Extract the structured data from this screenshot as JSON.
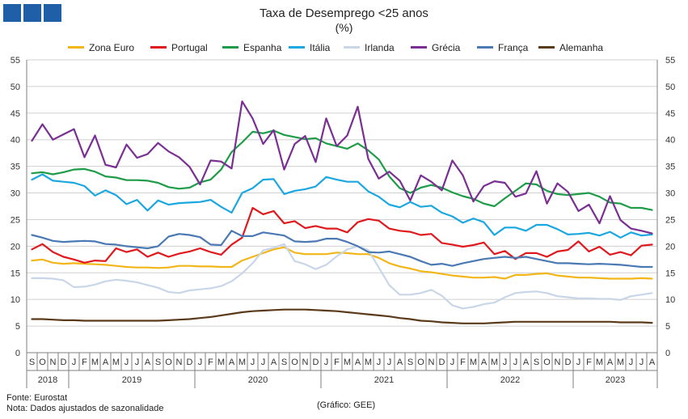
{
  "header": {
    "title": "Taxa de Desemprego <25 anos",
    "subtitle": "(%)"
  },
  "footer": {
    "source": "Fonte: Eurostat",
    "note": "Nota: Dados ajustados de sazonalidade",
    "credit": "(Gráfico: GEE)"
  },
  "colors": {
    "brand": "#1f5fa8",
    "grid": "#d0d0d0",
    "axis": "#7f7f7f"
  },
  "chart_data": {
    "type": "line",
    "title": "Taxa de Desemprego <25 anos",
    "subtitle": "(%)",
    "xlabel": "",
    "ylabel": "%",
    "ylim": [
      0,
      55
    ],
    "y_ticks": [
      0,
      5,
      10,
      15,
      20,
      25,
      30,
      35,
      40,
      45,
      50,
      55
    ],
    "grid": true,
    "legend_position": "top",
    "month_labels": [
      "S",
      "O",
      "N",
      "D",
      "J",
      "F",
      "M",
      "A",
      "M",
      "J",
      "J",
      "A",
      "S",
      "O",
      "N",
      "D",
      "J",
      "F",
      "M",
      "A",
      "M",
      "J",
      "J",
      "A",
      "S",
      "O",
      "N",
      "D",
      "J",
      "F",
      "M",
      "A",
      "M",
      "J",
      "J",
      "A",
      "S",
      "O",
      "N",
      "D",
      "J",
      "F",
      "M",
      "A",
      "M",
      "J",
      "J",
      "A",
      "S",
      "O",
      "N",
      "D",
      "J",
      "F",
      "M",
      "A",
      "M",
      "J",
      "J",
      "A"
    ],
    "year_labels": [
      {
        "label": "2018",
        "start": 0,
        "end": 3
      },
      {
        "label": "2019",
        "start": 4,
        "end": 15
      },
      {
        "label": "2020",
        "start": 16,
        "end": 27
      },
      {
        "label": "2021",
        "start": 28,
        "end": 39
      },
      {
        "label": "2022",
        "start": 40,
        "end": 51
      },
      {
        "label": "2023",
        "start": 52,
        "end": 59
      }
    ],
    "series": [
      {
        "name": "Zona Euro",
        "color": "#f2b619",
        "values": [
          17.3,
          17.5,
          16.9,
          16.7,
          16.8,
          16.7,
          16.6,
          16.5,
          16.3,
          16.1,
          16.0,
          16.0,
          15.9,
          16.0,
          16.3,
          16.3,
          16.2,
          16.2,
          16.1,
          16.1,
          17.3,
          18.0,
          18.7,
          19.4,
          19.8,
          18.8,
          18.5,
          18.5,
          18.5,
          18.8,
          18.7,
          18.5,
          18.5,
          17.8,
          16.8,
          16.2,
          15.8,
          15.3,
          15.1,
          14.8,
          14.5,
          14.3,
          14.1,
          14.1,
          14.2,
          13.9,
          14.6,
          14.6,
          14.8,
          14.9,
          14.5,
          14.3,
          14.1,
          14.1,
          14.0,
          13.9,
          13.9,
          13.9,
          14.0,
          13.9
        ]
      },
      {
        "name": "Portugal",
        "color": "#e0191e",
        "values": [
          19.4,
          20.4,
          18.9,
          18.0,
          17.5,
          16.9,
          17.3,
          17.2,
          19.6,
          18.9,
          19.4,
          18.0,
          18.8,
          18.0,
          18.6,
          19.0,
          19.6,
          18.9,
          18.4,
          20.3,
          21.6,
          27.2,
          26.0,
          26.6,
          24.3,
          24.7,
          23.4,
          23.8,
          23.3,
          23.3,
          22.6,
          24.5,
          25.1,
          24.8,
          23.3,
          22.9,
          22.7,
          22.1,
          22.3,
          20.6,
          20.3,
          19.9,
          20.2,
          20.7,
          18.5,
          19.1,
          17.6,
          18.7,
          18.7,
          18.0,
          19.0,
          19.3,
          20.9,
          19.0,
          19.9,
          18.4,
          18.9,
          18.3,
          20.1,
          20.3
        ]
      },
      {
        "name": "Espanha",
        "color": "#1f9c48",
        "values": [
          33.7,
          33.9,
          33.5,
          33.9,
          34.4,
          34.5,
          34.0,
          33.1,
          32.9,
          32.4,
          32.4,
          32.3,
          31.9,
          31.1,
          30.8,
          31.0,
          32.0,
          32.5,
          34.4,
          37.7,
          39.5,
          41.5,
          41.2,
          41.7,
          40.9,
          40.5,
          40.1,
          40.3,
          39.3,
          38.8,
          38.3,
          39.3,
          38.0,
          36.3,
          33.1,
          30.9,
          30.0,
          31.0,
          31.5,
          31.0,
          30.1,
          29.4,
          28.9,
          28.0,
          27.5,
          29.0,
          30.4,
          31.8,
          31.6,
          30.4,
          29.8,
          29.6,
          29.8,
          30.0,
          29.3,
          28.2,
          28.0,
          27.2,
          27.2,
          26.8
        ]
      },
      {
        "name": "Itália",
        "color": "#1ba7df",
        "values": [
          32.5,
          33.5,
          32.3,
          32.1,
          31.9,
          31.3,
          29.5,
          30.5,
          29.6,
          27.9,
          28.7,
          26.7,
          28.6,
          27.8,
          28.1,
          28.2,
          28.3,
          28.7,
          27.4,
          26.3,
          30.0,
          30.9,
          32.5,
          32.6,
          29.8,
          30.4,
          30.7,
          31.2,
          33.0,
          32.5,
          32.1,
          32.1,
          30.3,
          29.3,
          27.8,
          27.3,
          28.3,
          27.4,
          27.6,
          26.3,
          25.6,
          24.4,
          25.2,
          24.5,
          22.1,
          23.5,
          23.5,
          22.9,
          24.0,
          24.0,
          23.2,
          22.2,
          22.3,
          22.5,
          22.0,
          22.7,
          21.6,
          22.6,
          22.0,
          22.2
        ]
      },
      {
        "name": "Irlanda",
        "color": "#c9d6e8",
        "values": [
          14.0,
          14.0,
          13.9,
          13.6,
          12.3,
          12.4,
          12.8,
          13.4,
          13.7,
          13.5,
          13.2,
          12.7,
          12.2,
          11.4,
          11.2,
          11.7,
          11.9,
          12.1,
          12.5,
          13.4,
          14.9,
          16.8,
          19.2,
          19.7,
          20.4,
          17.2,
          16.6,
          15.7,
          16.5,
          18.1,
          19.4,
          20.0,
          19.3,
          16.0,
          12.7,
          10.9,
          10.9,
          11.2,
          11.8,
          10.7,
          8.9,
          8.3,
          8.6,
          9.1,
          9.4,
          10.4,
          11.2,
          11.4,
          11.5,
          11.2,
          10.6,
          10.4,
          10.2,
          10.2,
          10.1,
          10.1,
          9.9,
          10.6,
          10.9,
          11.2
        ]
      },
      {
        "name": "Grécia",
        "color": "#7a2f93",
        "values": [
          39.8,
          42.9,
          40.0,
          41.0,
          42.0,
          36.7,
          40.8,
          35.3,
          34.8,
          39.1,
          36.6,
          37.3,
          39.4,
          37.8,
          36.7,
          34.9,
          31.6,
          36.1,
          35.9,
          34.6,
          47.2,
          44.0,
          39.2,
          41.8,
          34.4,
          39.2,
          40.7,
          35.8,
          44.0,
          38.8,
          40.8,
          46.2,
          36.4,
          32.7,
          34.0,
          32.3,
          28.6,
          33.3,
          32.1,
          30.5,
          36.1,
          33.3,
          28.4,
          31.3,
          32.2,
          31.9,
          29.3,
          29.9,
          34.1,
          28.0,
          31.8,
          30.2,
          26.6,
          27.8,
          24.3,
          29.4,
          24.9,
          23.3,
          22.9,
          22.4
        ]
      },
      {
        "name": "França",
        "color": "#4a79b4",
        "values": [
          22.1,
          21.6,
          21.0,
          20.8,
          20.9,
          21.0,
          20.9,
          20.4,
          20.3,
          20.0,
          19.8,
          19.6,
          20.0,
          21.8,
          22.3,
          22.1,
          21.7,
          20.3,
          20.2,
          22.9,
          21.9,
          21.9,
          22.6,
          22.3,
          22.0,
          20.9,
          20.8,
          20.9,
          21.4,
          21.4,
          20.8,
          20.0,
          18.9,
          18.8,
          19.0,
          18.5,
          18.0,
          17.2,
          16.5,
          16.7,
          16.3,
          16.8,
          17.2,
          17.6,
          17.8,
          18.0,
          17.8,
          18.0,
          17.6,
          17.2,
          16.8,
          16.8,
          16.7,
          16.6,
          16.7,
          16.6,
          16.5,
          16.3,
          16.1,
          16.1
        ]
      },
      {
        "name": "Alemanha",
        "color": "#5b3a1a",
        "values": [
          6.3,
          6.3,
          6.2,
          6.1,
          6.1,
          6.0,
          6.0,
          6.0,
          6.0,
          6.0,
          6.0,
          6.0,
          6.0,
          6.1,
          6.2,
          6.3,
          6.5,
          6.7,
          7.0,
          7.3,
          7.6,
          7.8,
          7.9,
          8.0,
          8.1,
          8.1,
          8.1,
          8.0,
          7.9,
          7.8,
          7.6,
          7.4,
          7.2,
          7.0,
          6.8,
          6.5,
          6.3,
          6.0,
          5.9,
          5.7,
          5.6,
          5.5,
          5.5,
          5.5,
          5.6,
          5.7,
          5.8,
          5.8,
          5.8,
          5.8,
          5.8,
          5.8,
          5.8,
          5.8,
          5.8,
          5.8,
          5.7,
          5.7,
          5.7,
          5.6
        ]
      }
    ]
  }
}
